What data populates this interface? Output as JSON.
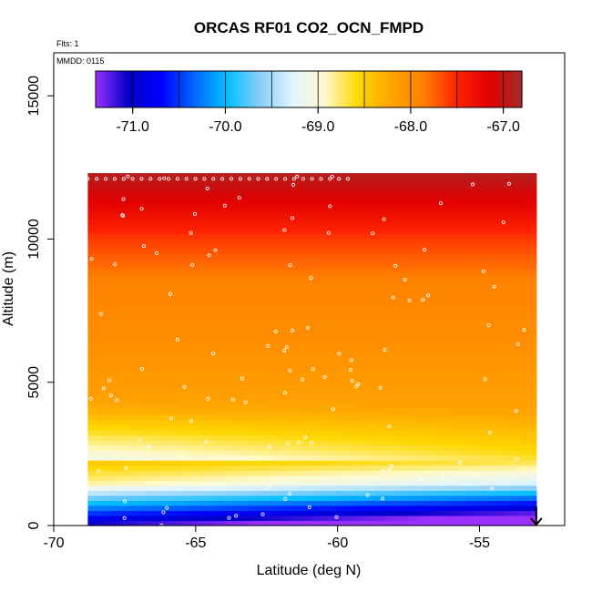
{
  "chart_data": {
    "type": "heatmap",
    "title": "ORCAS RF01 CO2_OCN_FMPD",
    "annotations": {
      "flights": "Flts: 1",
      "date": "MMDD: 0115"
    },
    "xlabel": "Latitude (deg N)",
    "ylabel": "Altitude (m)",
    "xlim": [
      -70,
      -52
    ],
    "ylim": [
      0,
      16500
    ],
    "x_ticks": [
      -70,
      -65,
      -60,
      -55
    ],
    "x_tick_labels": [
      "-70",
      "-65",
      "-60",
      "-55"
    ],
    "y_ticks": [
      0,
      5000,
      10000,
      15000
    ],
    "y_tick_labels": [
      "0",
      "5000",
      "10000",
      "15000"
    ],
    "colorbar": {
      "range": [
        -71.4,
        -66.8
      ],
      "ticks": [
        -71.0,
        -70.0,
        -69.0,
        -68.0,
        -67.0
      ],
      "tick_labels": [
        "-71.0",
        "-70.0",
        "-69.0",
        "-68.0",
        "-67.0"
      ],
      "segment_breaks": [
        -71.4,
        -71.0,
        -70.5,
        -70.0,
        -69.5,
        -69.0,
        -68.5,
        -68.0,
        -67.5,
        -67.0,
        -66.8
      ],
      "palette": [
        "#9b30ff",
        "#0000c8",
        "#0000ff",
        "#0066ff",
        "#00bfff",
        "#87cefa",
        "#e0f4ff",
        "#fffacd",
        "#ffd700",
        "#ffa500",
        "#ff7f00",
        "#ff2400",
        "#e00000",
        "#a52a2a"
      ]
    },
    "field": {
      "x_range": [
        -68.8,
        -53.0
      ],
      "top_altitude": 12300,
      "description_levels": [
        {
          "alt": 0,
          "value": -71.2
        },
        {
          "alt": 400,
          "value": -70.6
        },
        {
          "alt": 900,
          "value": -69.9
        },
        {
          "alt": 1500,
          "value": -69.0
        },
        {
          "alt": 2500,
          "value": -68.6
        },
        {
          "alt": 4000,
          "value": -68.2
        },
        {
          "alt": 6500,
          "value": -68.0
        },
        {
          "alt": 8500,
          "value": -67.9
        },
        {
          "alt": 10000,
          "value": -67.6
        },
        {
          "alt": 11200,
          "value": -67.2
        },
        {
          "alt": 12300,
          "value": -66.9
        }
      ],
      "surface_arrow_latitude": -53.0
    }
  }
}
